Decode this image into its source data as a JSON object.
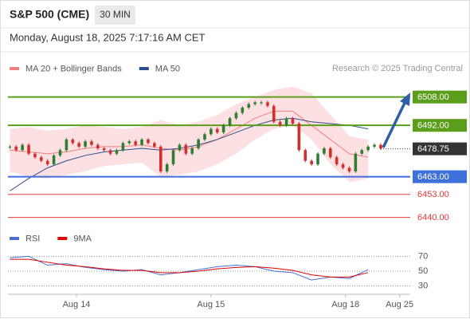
{
  "chart_data": [
    {
      "type": "candlestick",
      "title": "S&P 500 (CME)",
      "timeframe": "30 MIN",
      "subtitle": "Monday, August 18, 2025 7:17:16 AM CET",
      "credit": "Research © 2025 Trading Central",
      "up_color": "#2e7d32",
      "down_color": "#d32f2f",
      "xlim": [
        -0.3,
        63.7
      ],
      "ylim": [
        6434,
        6520
      ],
      "x": [
        0,
        1,
        2,
        3,
        4,
        5,
        6,
        7,
        8,
        9,
        10,
        11,
        12,
        13,
        14,
        15,
        16,
        17,
        18,
        19,
        20,
        21,
        22,
        23,
        24,
        25,
        26,
        27,
        28,
        29,
        30,
        31,
        32,
        33,
        34,
        35,
        36,
        37,
        38,
        39,
        40,
        41,
        42,
        43,
        44,
        45,
        46,
        47,
        48,
        49,
        50,
        51,
        52,
        53,
        54,
        55,
        56,
        57,
        58,
        59
      ],
      "values": [
        6480,
        6478,
        6481,
        6476,
        6474,
        6472,
        6470,
        6475,
        6478,
        6484,
        6482,
        6480,
        6483,
        6481,
        6479,
        6478,
        6476,
        6478,
        6482,
        6483,
        6481,
        6484,
        6482,
        6480,
        6466,
        6470,
        6478,
        6481,
        6476,
        6479,
        6484,
        6487,
        6490,
        6488,
        6492,
        6496,
        6499,
        6502,
        6504,
        6505,
        6505,
        6503,
        6494,
        6492,
        6496,
        6493,
        6478,
        6472,
        6470,
        6476,
        6479,
        6474,
        6470,
        6468,
        6466,
        6476,
        6478,
        6480,
        6481,
        6479
      ],
      "series": [
        {
          "name": "MA 20 + Bollinger Bands",
          "color": "#f08080",
          "fill": "#fde0e2",
          "x": [
            0,
            3,
            6,
            9,
            12,
            15,
            18,
            21,
            24,
            27,
            30,
            33,
            36,
            39,
            42,
            45,
            48,
            51,
            54,
            57
          ],
          "upper": [
            6490,
            6491,
            6489,
            6490,
            6492,
            6491,
            6490,
            6491,
            6495,
            6492,
            6494,
            6498,
            6504,
            6508,
            6512,
            6514,
            6510,
            6498,
            6486,
            6484
          ],
          "values": [
            6478,
            6477,
            6476,
            6477,
            6479,
            6480,
            6480,
            6481,
            6479,
            6478,
            6480,
            6484,
            6490,
            6496,
            6500,
            6500,
            6492,
            6484,
            6476,
            6474
          ],
          "lower": [
            6466,
            6463,
            6462,
            6464,
            6466,
            6469,
            6470,
            6471,
            6463,
            6464,
            6466,
            6470,
            6476,
            6484,
            6490,
            6492,
            6484,
            6470,
            6460,
            6462
          ]
        },
        {
          "name": "MA 50",
          "color": "#2b4c8c",
          "x": [
            0,
            3,
            6,
            9,
            12,
            15,
            18,
            21,
            24,
            27,
            30,
            33,
            36,
            39,
            42,
            45,
            48,
            51,
            54,
            57
          ],
          "values": [
            6455,
            6462,
            6468,
            6472,
            6475,
            6477,
            6478,
            6479,
            6478,
            6479,
            6481,
            6484,
            6488,
            6492,
            6495,
            6496,
            6494,
            6493,
            6492,
            6490
          ]
        }
      ],
      "levels": [
        {
          "value": 6508,
          "label": "6508.00",
          "color": "#5a9e1b",
          "box": true
        },
        {
          "value": 6492,
          "label": "6492.00",
          "color": "#5a9e1b",
          "box": true
        },
        {
          "value": 6463,
          "label": "6463.00",
          "color": "#3f6fd8",
          "box": true
        },
        {
          "value": 6453,
          "label": "6453.00",
          "color": "#e53935",
          "box": false
        },
        {
          "value": 6440,
          "label": "6440.00",
          "color": "#e53935",
          "box": false
        }
      ],
      "last_price": {
        "value": 6478.75,
        "label": "6478.75",
        "color": "#333333"
      }
    },
    {
      "type": "line",
      "xlim": [
        -0.3,
        63.7
      ],
      "ylim": [
        22,
        79
      ],
      "yticks": [
        30,
        50,
        70
      ],
      "xticks": [
        {
          "value": 10.6,
          "label": "Aug 14"
        },
        {
          "value": 32,
          "label": "Aug 15"
        },
        {
          "value": 53.4,
          "label": "Aug 18"
        },
        {
          "value": 62,
          "label": "Aug 25"
        }
      ],
      "x": [
        0,
        3,
        6,
        9,
        12,
        15,
        18,
        21,
        24,
        27,
        30,
        33,
        36,
        39,
        42,
        45,
        48,
        51,
        54,
        57
      ],
      "series": [
        {
          "name": "RSI",
          "color": "#4a6fd6",
          "values": [
            68,
            70,
            58,
            60,
            55,
            52,
            50,
            52,
            45,
            48,
            52,
            56,
            58,
            56,
            50,
            48,
            38,
            42,
            40,
            52
          ]
        },
        {
          "name": "9MA",
          "color": "#e00000",
          "values": [
            66,
            66,
            62,
            58,
            56,
            53,
            51,
            51,
            48,
            48,
            50,
            53,
            55,
            56,
            54,
            51,
            45,
            42,
            42,
            48
          ]
        }
      ]
    }
  ]
}
